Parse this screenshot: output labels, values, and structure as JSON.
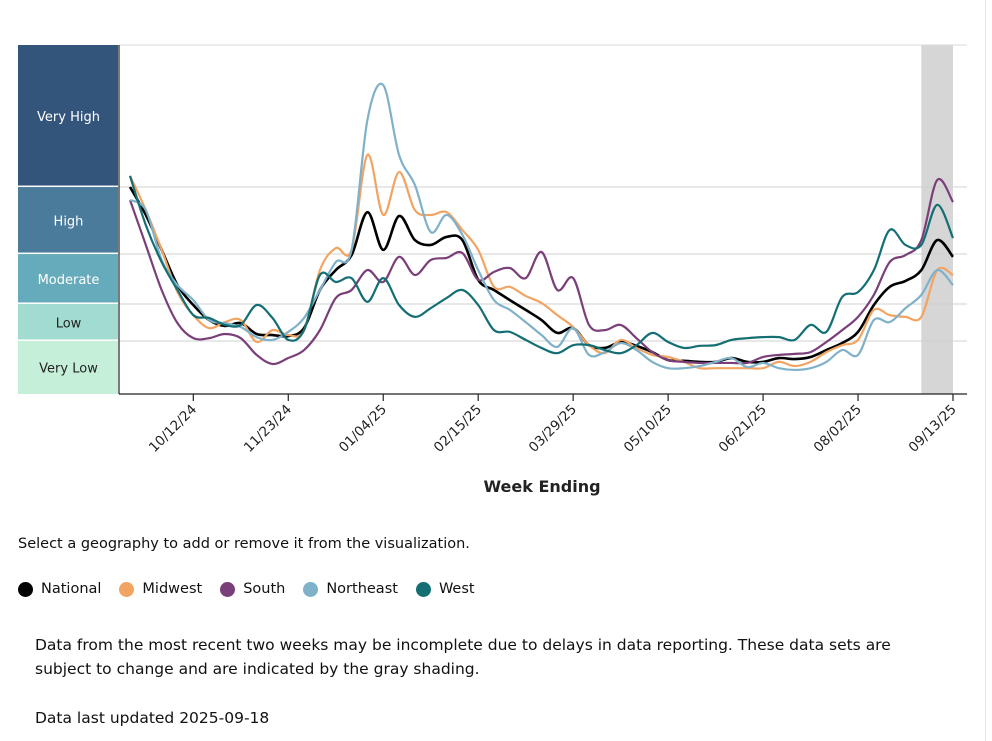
{
  "chart_data": {
    "type": "line",
    "xlabel": "Week Ending",
    "ylabel": "",
    "y_scale_note": "relative wastewater level",
    "ylim": [
      0,
      100
    ],
    "grid": true,
    "tick_labels": [
      "10/12/24",
      "11/23/24",
      "01/04/25",
      "02/15/25",
      "03/29/25",
      "05/10/25",
      "06/21/25",
      "08/02/25",
      "09/13/25"
    ],
    "tick_week_indices": [
      4,
      10,
      16,
      22,
      28,
      34,
      40,
      46,
      52
    ],
    "x_start": "09/14/24",
    "x_end": "09/13/25",
    "incomplete_weeks": 2,
    "levels": [
      {
        "label": "Very High",
        "min": 59.3,
        "max": 100,
        "color": "#34557b",
        "text": "light"
      },
      {
        "label": "High",
        "min": 40.1,
        "max": 59.3,
        "color": "#4a7b9b",
        "text": "light"
      },
      {
        "label": "Moderate",
        "min": 25.8,
        "max": 40.1,
        "color": "#66abbb",
        "text": "light"
      },
      {
        "label": "Low",
        "min": 15.2,
        "max": 25.8,
        "color": "#a2dcd1",
        "text": "dark"
      },
      {
        "label": "Very Low",
        "min": 0,
        "max": 15.2,
        "color": "#c6efda",
        "text": "dark"
      }
    ],
    "series": [
      {
        "name": "National",
        "color": "#000000",
        "values": [
          59.3,
          51.3,
          41.3,
          31.2,
          25.5,
          21.2,
          19.5,
          20.3,
          17.2,
          16.9,
          16.6,
          18.9,
          29.8,
          35.5,
          39.8,
          52.1,
          41.3,
          51,
          44.1,
          42.7,
          45,
          44.1,
          32.7,
          29.8,
          26.9,
          24.1,
          21.2,
          17.5,
          18.9,
          14,
          13.2,
          14.9,
          13.8,
          12,
          9.7,
          9.5,
          9.2,
          9.2,
          10.3,
          9.2,
          9.2,
          10.3,
          10,
          10.6,
          12.6,
          14.6,
          17.8,
          25.5,
          30.7,
          32.4,
          35.5,
          44.1,
          39.3
        ]
      },
      {
        "name": "Midwest",
        "color": "#f2a463",
        "values": [
          62.5,
          52.7,
          41.3,
          29.2,
          22.6,
          18.9,
          20.6,
          21.2,
          14.9,
          18.3,
          16.9,
          18.3,
          35.5,
          41.8,
          41.3,
          68.5,
          51.3,
          63.6,
          52.7,
          51.3,
          52.1,
          47,
          41.3,
          30.7,
          30.7,
          28.1,
          26.1,
          22.6,
          19.2,
          14,
          11.7,
          15.5,
          13.2,
          11.2,
          10.6,
          9.2,
          7.4,
          7.4,
          7.4,
          7.4,
          7.4,
          9.2,
          8,
          9.2,
          12,
          14,
          15.5,
          24.1,
          22.6,
          22.1,
          22.1,
          35.5,
          34.1
        ]
      },
      {
        "name": "South",
        "color": "#7a3f78",
        "values": [
          55.6,
          42.7,
          29.8,
          20.3,
          16,
          16,
          17.2,
          16,
          11.2,
          8.6,
          10.3,
          12.6,
          18.3,
          27.5,
          29.8,
          35.5,
          32.1,
          39.3,
          34.1,
          38.4,
          39,
          40.4,
          32.7,
          35,
          36.1,
          33.2,
          40.7,
          29.8,
          33.2,
          19.8,
          18.3,
          19.8,
          16,
          12,
          9.7,
          9.2,
          8.9,
          8.9,
          8.9,
          8.9,
          10.6,
          11.2,
          11.5,
          12,
          14.9,
          18.3,
          22.1,
          28.4,
          37.8,
          39.8,
          44.1,
          61.3,
          55
        ]
      },
      {
        "name": "Northeast",
        "color": "#7fb1c9",
        "values": [
          55.6,
          52.7,
          38.4,
          31.2,
          26.9,
          21.2,
          20.3,
          19.2,
          16.3,
          15.5,
          17.8,
          21.8,
          29.8,
          37.8,
          41.3,
          78.5,
          88.5,
          68.5,
          59.9,
          46.4,
          51.3,
          45.6,
          35.5,
          26.9,
          24.1,
          20.6,
          16.9,
          13.5,
          18.9,
          11.2,
          12,
          14.6,
          12.6,
          9.2,
          7.4,
          7.4,
          8,
          9.2,
          10.3,
          7.7,
          8.9,
          7.4,
          6.9,
          7.4,
          9.2,
          12.6,
          11.2,
          21.2,
          20.6,
          24.6,
          28.4,
          35.5,
          31.2
        ]
      },
      {
        "name": "West",
        "color": "#136f74",
        "values": [
          62.5,
          48.4,
          37.8,
          29.8,
          22.6,
          21.8,
          19.8,
          19.8,
          25.5,
          21.8,
          15.5,
          18.3,
          34.1,
          32.1,
          33.2,
          26.4,
          33.2,
          25.5,
          22.1,
          24.6,
          27.5,
          29.8,
          25.5,
          18.3,
          17.8,
          15.5,
          13.2,
          11.7,
          14,
          14,
          12.6,
          11.7,
          14,
          17.5,
          14.9,
          13.2,
          13.8,
          14,
          15.5,
          16,
          16.3,
          16.3,
          15.5,
          19.8,
          17.8,
          27.8,
          29.2,
          35.5,
          47,
          42.7,
          42.7,
          54.2,
          44.7
        ]
      }
    ]
  },
  "instructions": "Select a geography to add or remove it from the visualization.",
  "legend": [
    {
      "label": "National",
      "color": "#000000"
    },
    {
      "label": "Midwest",
      "color": "#f2a463"
    },
    {
      "label": "South",
      "color": "#7a3f78"
    },
    {
      "label": "Northeast",
      "color": "#7fb1c9"
    },
    {
      "label": "West",
      "color": "#136f74"
    }
  ],
  "note": "Data from the most recent two weeks may be incomplete due to delays in data reporting. These data sets are subject to change and are indicated by the gray shading.",
  "updated": "Data last updated 2025-09-18"
}
